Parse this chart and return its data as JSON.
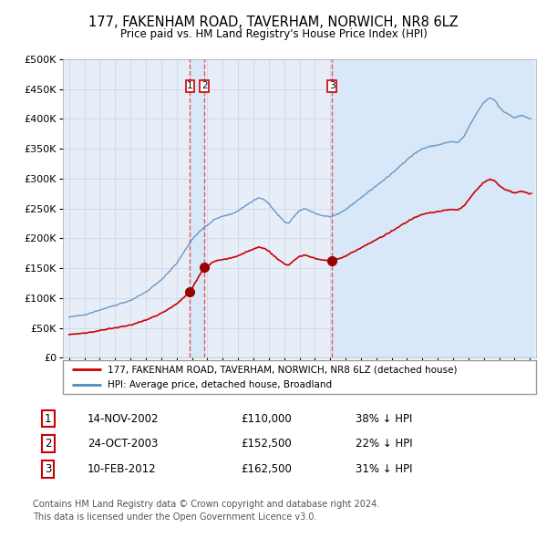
{
  "title": "177, FAKENHAM ROAD, TAVERHAM, NORWICH, NR8 6LZ",
  "subtitle": "Price paid vs. HM Land Registry's House Price Index (HPI)",
  "red_line_label": "177, FAKENHAM ROAD, TAVERHAM, NORWICH, NR8 6LZ (detached house)",
  "blue_line_label": "HPI: Average price, detached house, Broadland",
  "transactions": [
    {
      "num": 1,
      "date": "14-NOV-2002",
      "price": 110000,
      "pct": "38% ↓ HPI"
    },
    {
      "num": 2,
      "date": "24-OCT-2003",
      "price": 152500,
      "pct": "22% ↓ HPI"
    },
    {
      "num": 3,
      "date": "10-FEB-2012",
      "price": 162500,
      "pct": "31% ↓ HPI"
    }
  ],
  "transaction_dates_decimal": [
    2002.876,
    2003.814,
    2012.109
  ],
  "footnote1": "Contains HM Land Registry data © Crown copyright and database right 2024.",
  "footnote2": "This data is licensed under the Open Government Licence v3.0.",
  "ylim": [
    0,
    500000
  ],
  "yticks": [
    0,
    50000,
    100000,
    150000,
    200000,
    250000,
    300000,
    350000,
    400000,
    450000,
    500000
  ],
  "background_color": "#ffffff",
  "plot_bg_color": "#e8eef8",
  "grid_color": "#d0d8e8",
  "red_color": "#cc0000",
  "blue_color": "#5588bb",
  "vline_color": "#ee3333",
  "vband_color": "#d8e8f8",
  "marker_color": "#990000"
}
